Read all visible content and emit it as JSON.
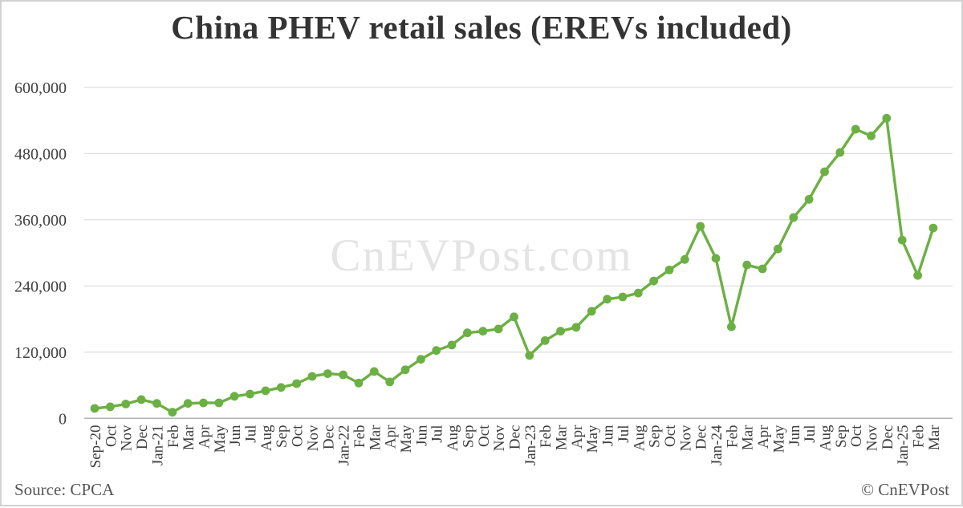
{
  "chart_data": {
    "type": "line",
    "title": "China PHEV retail sales (EREVs included)",
    "xlabel": "",
    "ylabel": "",
    "ylim": [
      0,
      600000
    ],
    "grid": "horizontal",
    "legend": "none",
    "marker": "circle",
    "y_ticks": [
      {
        "value": 0,
        "label": "0"
      },
      {
        "value": 120000,
        "label": "120,000"
      },
      {
        "value": 240000,
        "label": "240,000"
      },
      {
        "value": 360000,
        "label": "360,000"
      },
      {
        "value": 480000,
        "label": "480,000"
      },
      {
        "value": 600000,
        "label": "600,000"
      }
    ],
    "categories": [
      "Sep-20",
      "Oct",
      "Nov",
      "Dec",
      "Jan-21",
      "Feb",
      "Mar",
      "Apr",
      "May",
      "Jun",
      "Jul",
      "Aug",
      "Sep",
      "Oct",
      "Nov",
      "Dec",
      "Jan-22",
      "Feb",
      "Mar",
      "Apr",
      "May",
      "Jun",
      "Jul",
      "Aug",
      "Sep",
      "Oct",
      "Nov",
      "Dec",
      "Jan-23",
      "Feb",
      "Mar",
      "Apr",
      "May",
      "Jun",
      "Jul",
      "Aug",
      "Sep",
      "Oct",
      "Nov",
      "Dec",
      "Jan-24",
      "Feb",
      "Mar",
      "Apr",
      "May",
      "Jun",
      "Jul",
      "Aug",
      "Sep",
      "Oct",
      "Nov",
      "Dec",
      "Jan-25",
      "Feb",
      "Mar"
    ],
    "series": [
      {
        "name": "China PHEV retail sales (EREVs included)",
        "color": "#6cb044",
        "values": [
          18000,
          21000,
          26000,
          34000,
          27000,
          11000,
          27000,
          28000,
          28000,
          40000,
          44000,
          50000,
          56000,
          63000,
          76000,
          81000,
          79000,
          64000,
          85000,
          66000,
          88000,
          107000,
          123000,
          133000,
          155000,
          158000,
          162000,
          184000,
          114000,
          141000,
          158000,
          165000,
          194000,
          216000,
          220000,
          227000,
          249000,
          269000,
          288000,
          348000,
          290000,
          166000,
          278000,
          271000,
          307000,
          364000,
          397000,
          447000,
          482000,
          524000,
          512000,
          544000,
          323000,
          259000,
          345000
        ]
      }
    ]
  },
  "watermark": {
    "text": "CnEVPost.com",
    "color": "#e4e4e4"
  },
  "footer": {
    "source": "Source: CPCA",
    "copyright": "© CnEVPost"
  },
  "colors": {
    "line": "#6cb044",
    "gridline": "#dadada",
    "axis_line": "#b3b3b3",
    "tick_text": "#3f3f3f",
    "title_text": "#343434",
    "footer_text": "#565656",
    "background": "#ffffff",
    "frame_border": "#d2d2d2"
  }
}
